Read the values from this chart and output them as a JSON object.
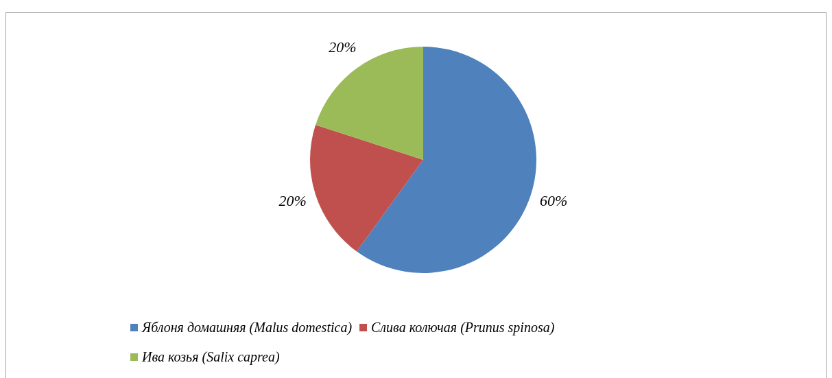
{
  "chart_data": {
    "type": "pie",
    "categories": [
      "Яблоня домашняя (Malus domestica)",
      "Слива колючая (Prunus spinosa)",
      "Ива козья (Salix caprea)"
    ],
    "values": [
      60,
      20,
      20
    ],
    "colors": [
      "#4f81bd",
      "#c0504d",
      "#9bbb59"
    ],
    "value_labels": [
      "60%",
      "20%",
      "20%"
    ],
    "legend": "bottom"
  }
}
